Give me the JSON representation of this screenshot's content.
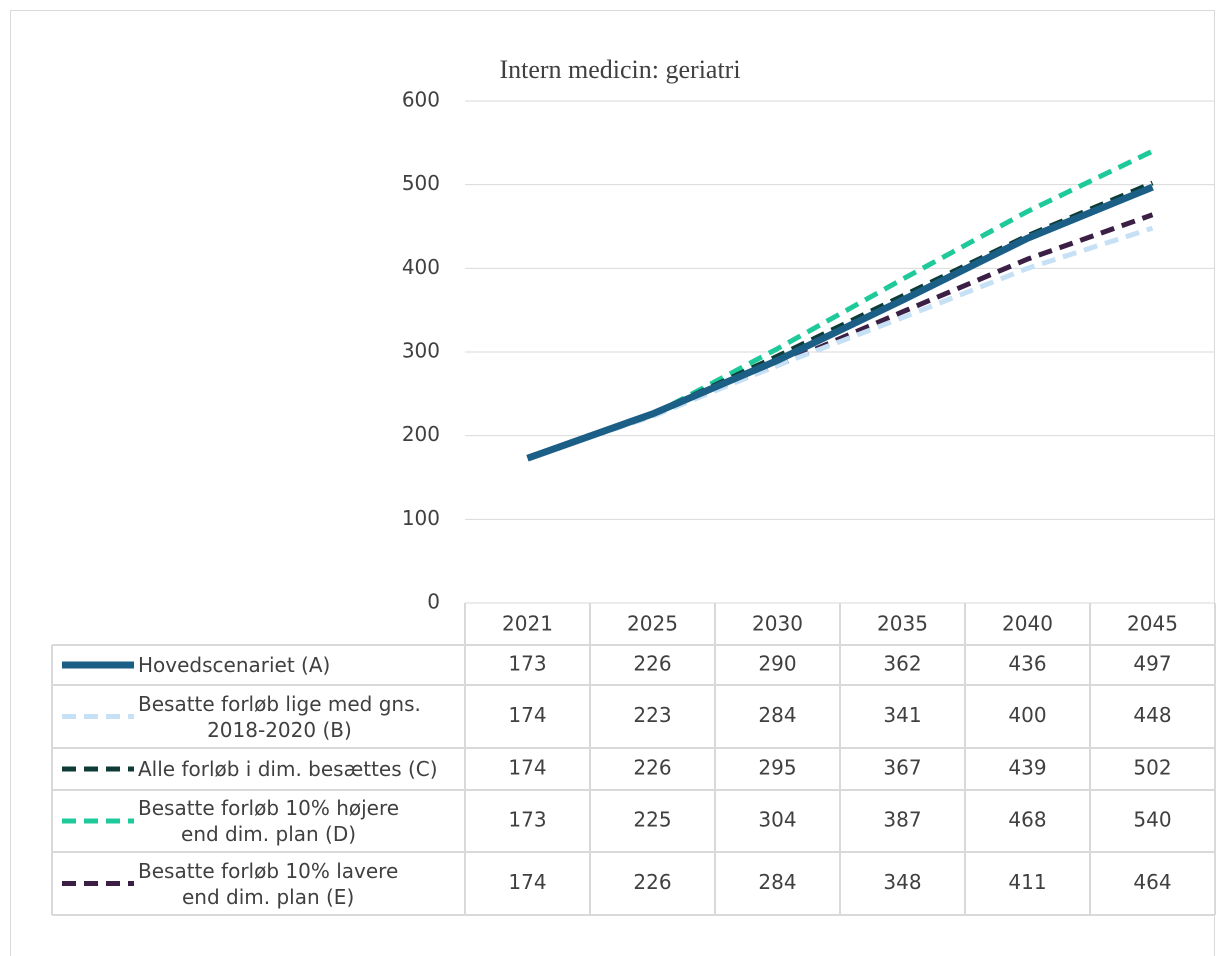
{
  "chart_data": {
    "type": "line",
    "title": "Intern medicin: geriatri",
    "categories": [
      "2021",
      "2025",
      "2030",
      "2035",
      "2040",
      "2045"
    ],
    "ylim": [
      0,
      600
    ],
    "yticks": [
      0,
      100,
      200,
      300,
      400,
      500,
      600
    ],
    "grid": true,
    "series": [
      {
        "name": "Hovedscenariet (A)",
        "color": "#1b5e86",
        "dash": false,
        "values": [
          173,
          226,
          290,
          362,
          436,
          497
        ]
      },
      {
        "name": "Besatte forløb lige med gns.\n2018-2020 (B)",
        "color": "#c6e0f5",
        "dash": true,
        "values": [
          174,
          223,
          284,
          341,
          400,
          448
        ]
      },
      {
        "name": "Alle forløb i dim. besættes (C)",
        "color": "#0e3b35",
        "dash": true,
        "values": [
          174,
          226,
          295,
          367,
          439,
          502
        ]
      },
      {
        "name": "Besatte forløb 10% højere\nend dim. plan (D)",
        "color": "#1ec99a",
        "dash": true,
        "values": [
          173,
          225,
          304,
          387,
          468,
          540
        ]
      },
      {
        "name": "Besatte forløb 10% lavere\nend dim. plan (E)",
        "color": "#3b1f45",
        "dash": true,
        "values": [
          174,
          226,
          284,
          348,
          411,
          464
        ]
      }
    ]
  }
}
